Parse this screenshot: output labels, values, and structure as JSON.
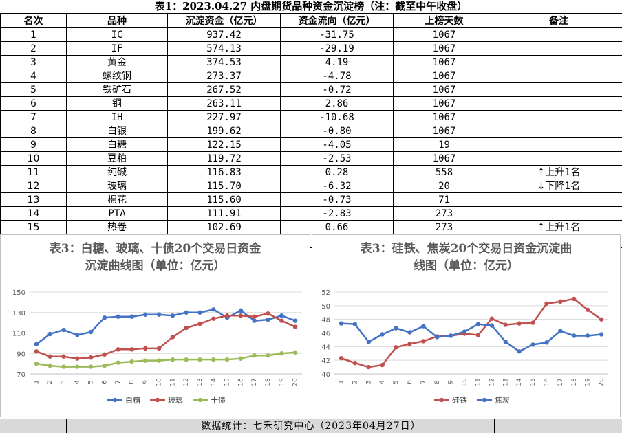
{
  "sheet": {
    "title": "表1：2023.04.27 内盘期货品种资金沉淀榜（注：截至中午收盘）",
    "columns": [
      "名次",
      "品种",
      "沉淀资金（亿元）",
      "资金流向（亿元）",
      "上榜天数",
      "备注"
    ],
    "rows": [
      {
        "rank": "1",
        "name": "IC",
        "capital": "937.42",
        "flow": "-31.75",
        "days": "1067",
        "note": ""
      },
      {
        "rank": "2",
        "name": "IF",
        "capital": "574.13",
        "flow": "-29.19",
        "days": "1067",
        "note": ""
      },
      {
        "rank": "3",
        "name": "黄金",
        "capital": "374.53",
        "flow": "4.19",
        "days": "1067",
        "note": ""
      },
      {
        "rank": "4",
        "name": "螺纹钢",
        "capital": "273.37",
        "flow": "-4.78",
        "days": "1067",
        "note": ""
      },
      {
        "rank": "5",
        "name": "铁矿石",
        "capital": "267.52",
        "flow": "-0.72",
        "days": "1067",
        "note": ""
      },
      {
        "rank": "6",
        "name": "铜",
        "capital": "263.11",
        "flow": "2.86",
        "days": "1067",
        "note": ""
      },
      {
        "rank": "7",
        "name": "IH",
        "capital": "227.97",
        "flow": "-10.68",
        "days": "1067",
        "note": ""
      },
      {
        "rank": "8",
        "name": "白银",
        "capital": "199.62",
        "flow": "-0.80",
        "days": "1067",
        "note": ""
      },
      {
        "rank": "9",
        "name": "白糖",
        "capital": "122.15",
        "flow": "-4.05",
        "days": "19",
        "note": ""
      },
      {
        "rank": "10",
        "name": "豆粕",
        "capital": "119.72",
        "flow": "-2.53",
        "days": "1067",
        "note": ""
      },
      {
        "rank": "11",
        "name": "纯碱",
        "capital": "116.83",
        "flow": "0.28",
        "days": "558",
        "note": "上升1名",
        "arrow": "↑"
      },
      {
        "rank": "12",
        "name": "玻璃",
        "capital": "115.70",
        "flow": "-6.32",
        "days": "20",
        "note": "下降1名",
        "arrow": "↓"
      },
      {
        "rank": "13",
        "name": "棉花",
        "capital": "115.60",
        "flow": "-0.73",
        "days": "71",
        "note": ""
      },
      {
        "rank": "14",
        "name": "PTA",
        "capital": "111.91",
        "flow": "-2.83",
        "days": "273",
        "note": ""
      },
      {
        "rank": "15",
        "name": "热卷",
        "capital": "102.69",
        "flow": "0.66",
        "days": "273",
        "note": "上升1名",
        "arrow": "↑"
      }
    ],
    "footer": "数据统计：七禾研究中心（2023年04月27日）"
  },
  "chart_data": [
    {
      "type": "line",
      "title_line1": "表3：白糖、玻璃、十债20个交易日资金",
      "title_line2": "沉淀曲线图（单位：亿元）",
      "x": [
        "1",
        "2",
        "3",
        "4",
        "5",
        "6",
        "7",
        "8",
        "9",
        "10",
        "11",
        "12",
        "13",
        "14",
        "15",
        "16",
        "17",
        "18",
        "19",
        "20"
      ],
      "ylim": [
        70,
        150
      ],
      "yticks": [
        70,
        90,
        110,
        130,
        150
      ],
      "grid": true,
      "legend": "bottom",
      "series": [
        {
          "name": "白糖",
          "color": "#4472c4",
          "values": [
            99,
            109,
            113,
            108,
            111,
            125,
            126,
            126,
            128,
            128,
            127,
            130,
            130,
            133,
            125,
            132,
            122,
            123,
            127,
            122
          ]
        },
        {
          "name": "玻璃",
          "color": "#c0504d",
          "values": [
            92,
            87,
            87,
            85,
            86,
            89,
            94,
            94,
            95,
            95,
            106,
            115,
            119,
            124,
            127,
            127,
            126,
            129,
            122,
            116
          ]
        },
        {
          "name": "十债",
          "color": "#9bbb59",
          "values": [
            80,
            78,
            77,
            77,
            77,
            78,
            81,
            82,
            83,
            83,
            84,
            84,
            84,
            84,
            84,
            85,
            88,
            88,
            90,
            91
          ]
        }
      ]
    },
    {
      "type": "line",
      "title_line1": "表3：硅铁、焦炭20个交易日资金沉淀曲",
      "title_line2": "线图（单位：亿元）",
      "x": [
        "1",
        "2",
        "3",
        "4",
        "5",
        "6",
        "7",
        "8",
        "9",
        "10",
        "11",
        "12",
        "13",
        "14",
        "15",
        "16",
        "17",
        "18",
        "19",
        "20"
      ],
      "ylim": [
        40,
        52
      ],
      "yticks": [
        40,
        42,
        44,
        46,
        48,
        50,
        52
      ],
      "grid": true,
      "legend": "bottom",
      "series": [
        {
          "name": "硅铁",
          "color": "#c0504d",
          "values": [
            42.3,
            41.6,
            41.0,
            41.3,
            43.9,
            44.4,
            44.8,
            45.5,
            45.6,
            45.9,
            45.7,
            48.1,
            47.2,
            47.4,
            47.5,
            50.3,
            50.6,
            51.0,
            49.4,
            48.0
          ]
        },
        {
          "name": "焦炭",
          "color": "#4472c4",
          "values": [
            47.4,
            47.3,
            44.7,
            45.8,
            46.7,
            46.1,
            47.0,
            45.4,
            45.6,
            46.2,
            47.3,
            47.1,
            44.7,
            43.3,
            44.3,
            44.6,
            46.3,
            45.6,
            45.6,
            45.8
          ]
        }
      ]
    }
  ]
}
